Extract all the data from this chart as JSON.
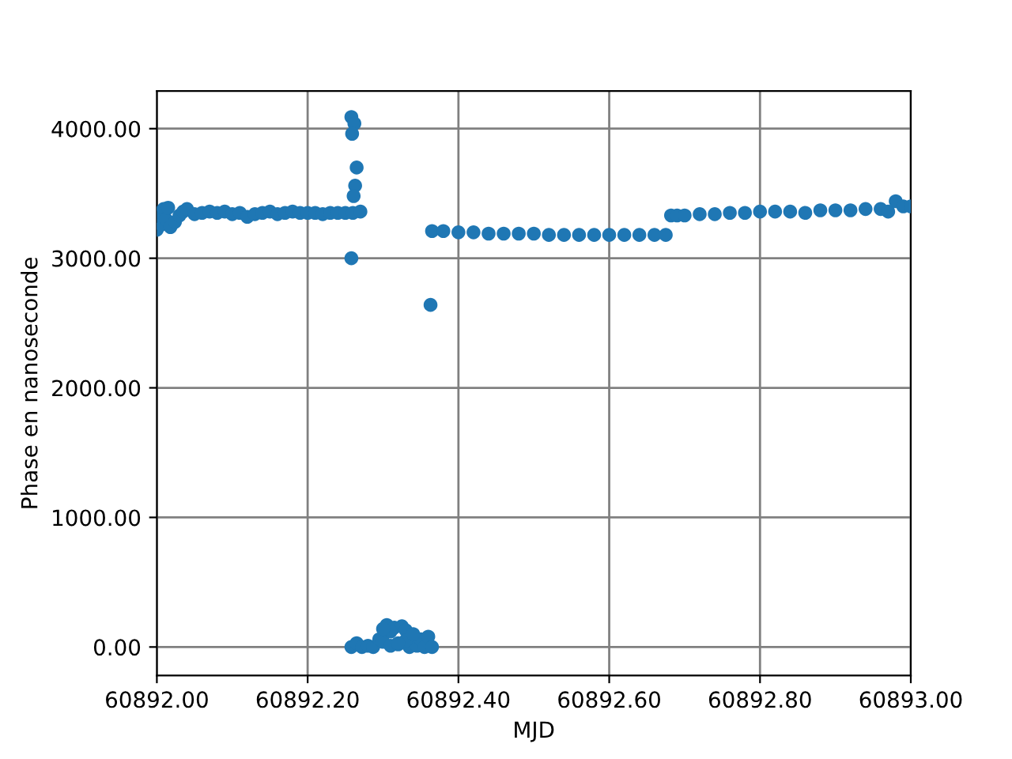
{
  "chart_data": {
    "type": "scatter",
    "xlabel": "MJD",
    "ylabel": "Phase en nanoseconde",
    "xlim": [
      60892.0,
      60893.0
    ],
    "xticks": [
      {
        "value": 60892.0,
        "label": "60892.00"
      },
      {
        "value": 60892.2,
        "label": "60892.20"
      },
      {
        "value": 60892.4,
        "label": "60892.40"
      },
      {
        "value": 60892.6,
        "label": "60892.60"
      },
      {
        "value": 60892.8,
        "label": "60892.80"
      },
      {
        "value": 60893.0,
        "label": "60893.00"
      }
    ],
    "ylim": [
      -220,
      4290
    ],
    "yticks": [
      {
        "value": 0,
        "label": "0.00"
      },
      {
        "value": 1000,
        "label": "1000.00"
      },
      {
        "value": 2000,
        "label": "2000.00"
      },
      {
        "value": 3000,
        "label": "3000.00"
      },
      {
        "value": 4000,
        "label": "4000.00"
      }
    ],
    "grid": true,
    "marker": "circle",
    "series": [
      {
        "color": "#1f77b4",
        "x": [
          60892.0,
          60892.003,
          60892.006,
          60892.009,
          60892.012,
          60892.015,
          60892.018,
          60892.024,
          60892.03,
          60892.035,
          60892.04,
          60892.05,
          60892.06,
          60892.07,
          60892.08,
          60892.09,
          60892.1,
          60892.11,
          60892.12,
          60892.13,
          60892.14,
          60892.15,
          60892.16,
          60892.17,
          60892.18,
          60892.19,
          60892.2,
          60892.21,
          60892.22,
          60892.23,
          60892.24,
          60892.25,
          60892.26,
          60892.27,
          60892.258,
          60892.262,
          60892.259,
          60892.265,
          60892.263,
          60892.261,
          60892.258,
          60892.258,
          60892.265,
          60892.272,
          60892.28,
          60892.287,
          60892.295,
          60892.3,
          60892.305,
          60892.31,
          60892.315,
          60892.32,
          60892.325,
          60892.33,
          60892.335,
          60892.345,
          60892.35,
          60892.355,
          60892.36,
          60892.365,
          60892.31,
          60892.33,
          60892.34,
          60892.3,
          60892.32,
          60892.363,
          60892.365,
          60892.38,
          60892.4,
          60892.42,
          60892.44,
          60892.46,
          60892.48,
          60892.5,
          60892.52,
          60892.54,
          60892.56,
          60892.58,
          60892.6,
          60892.62,
          60892.64,
          60892.66,
          60892.675,
          60892.682,
          60892.69,
          60892.7,
          60892.72,
          60892.74,
          60892.76,
          60892.78,
          60892.8,
          60892.82,
          60892.84,
          60892.86,
          60892.88,
          60892.9,
          60892.92,
          60892.94,
          60892.96,
          60892.97,
          60892.98,
          60892.99,
          60893.0
        ],
        "values": [
          3220,
          3350,
          3260,
          3380,
          3300,
          3390,
          3240,
          3280,
          3330,
          3360,
          3380,
          3340,
          3350,
          3360,
          3350,
          3360,
          3340,
          3350,
          3320,
          3340,
          3350,
          3360,
          3340,
          3350,
          3360,
          3350,
          3350,
          3350,
          3340,
          3350,
          3350,
          3350,
          3350,
          3360,
          4090,
          4040,
          3960,
          3700,
          3560,
          3480,
          3000,
          0,
          30,
          0,
          10,
          0,
          60,
          40,
          170,
          10,
          150,
          20,
          160,
          130,
          0,
          10,
          60,
          0,
          80,
          0,
          120,
          50,
          100,
          140,
          30,
          2640,
          3210,
          3210,
          3200,
          3200,
          3190,
          3190,
          3190,
          3190,
          3180,
          3180,
          3180,
          3180,
          3180,
          3180,
          3180,
          3180,
          3180,
          3330,
          3330,
          3330,
          3340,
          3340,
          3350,
          3350,
          3360,
          3360,
          3360,
          3350,
          3370,
          3370,
          3370,
          3380,
          3380,
          3360,
          3440,
          3400,
          3400
        ]
      }
    ]
  }
}
